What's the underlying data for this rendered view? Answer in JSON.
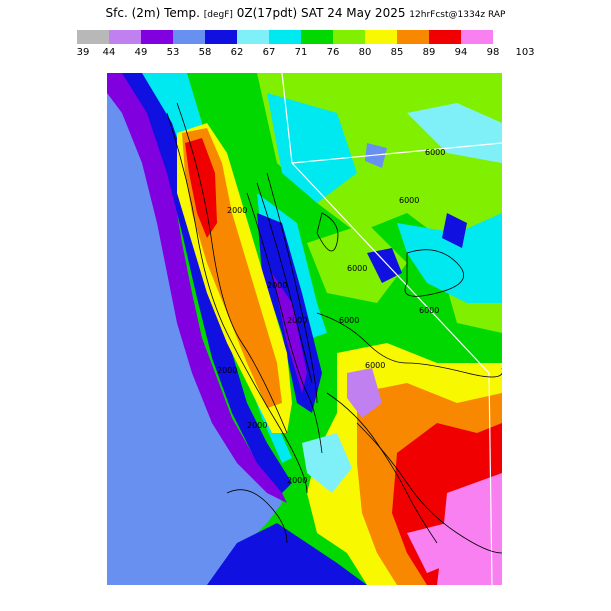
{
  "title": {
    "main": "Sfc. (2m) Temp.",
    "units": "[degF]",
    "valid": "0Z(17pdt) SAT 24 May 2025",
    "forecast": "12hrFcst@1334z RAP"
  },
  "legend": {
    "ticks": [
      "39",
      "44",
      "49",
      "53",
      "58",
      "62",
      "67",
      "71",
      "76",
      "80",
      "85",
      "89",
      "94",
      "98",
      "103"
    ],
    "colors": [
      "#b8b8b8",
      "#c080f0",
      "#8000e0",
      "#6890f0",
      "#1010e0",
      "#80f0f8",
      "#00e8f0",
      "#00d800",
      "#80f000",
      "#f8f800",
      "#f88800",
      "#f00000",
      "#f880f0"
    ]
  },
  "map": {
    "contour_labels": [
      "6000",
      "6000",
      "6000",
      "6000",
      "6000",
      "6000",
      "2000",
      "2000",
      "2000",
      "2000",
      "2000",
      "2000"
    ],
    "ocean_color": "#6890f0",
    "land_base_color": "#00d800"
  }
}
